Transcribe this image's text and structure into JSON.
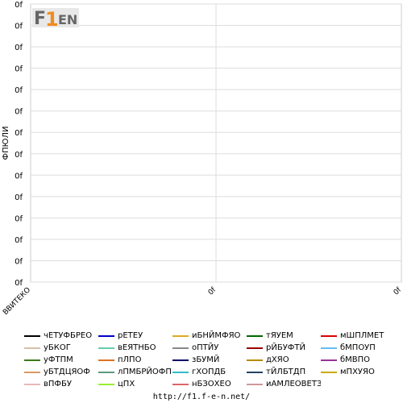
{
  "chart_data": {
    "type": "line",
    "title": "",
    "ylabel": "ФПЮЛИ",
    "xlabel": "",
    "x_ticks": [
      "ВВИТЕКО",
      "0f",
      "0f"
    ],
    "y_ticks": [
      "0f",
      "0f",
      "0f",
      "0f",
      "0f",
      "0f",
      "0f",
      "0f",
      "0f",
      "0f",
      "0f",
      "0f",
      "0f",
      "0f"
    ],
    "grid": true,
    "legend_position": "bottom",
    "series": [
      {
        "name": "чЕТУФБРЕО",
        "color": "#000000",
        "values": []
      },
      {
        "name": "уБКОГ",
        "color": "#d8bfa8",
        "values": []
      },
      {
        "name": "уФТПМ",
        "color": "#3a7a1a",
        "values": []
      },
      {
        "name": "уБТДЦЯОФ",
        "color": "#d89a6a",
        "values": []
      },
      {
        "name": "вПФБУ",
        "color": "#e8b8b8",
        "values": []
      },
      {
        "name": "рЕТЕУ",
        "color": "#0000cc",
        "values": []
      },
      {
        "name": "вЕЯТНБО",
        "color": "#66ccaa",
        "values": []
      },
      {
        "name": "пЛПО",
        "color": "#e07020",
        "values": []
      },
      {
        "name": "лПМБРЙОФП",
        "color": "#5a9a7a",
        "values": []
      },
      {
        "name": "цПХ",
        "color": "#99ee33",
        "values": []
      },
      {
        "name": "иБНЙМФЯО",
        "color": "#ddaa22",
        "values": []
      },
      {
        "name": "оПТЙУ",
        "color": "#888888",
        "values": []
      },
      {
        "name": "зБУМЙ",
        "color": "#000066",
        "values": []
      },
      {
        "name": "гХОПДБ",
        "color": "#33bbcc",
        "values": []
      },
      {
        "name": "нБЗОХЕО",
        "color": "#dd6666",
        "values": []
      },
      {
        "name": "тЯУЕМ",
        "color": "#006600",
        "values": []
      },
      {
        "name": "рЙБУФТЙ",
        "color": "#990000",
        "values": []
      },
      {
        "name": "дХЯО",
        "color": "#bb8800",
        "values": []
      },
      {
        "name": "тЙЛБТДП",
        "color": "#224466",
        "values": []
      },
      {
        "name": "иАМЛЕОВЕТЗ",
        "color": "#cc9999",
        "values": []
      },
      {
        "name": "мШПЛМЕТ",
        "color": "#dd0000",
        "values": []
      },
      {
        "name": "бМПОУП",
        "color": "#66bbee",
        "values": []
      },
      {
        "name": "бМВПО",
        "color": "#993399",
        "values": []
      },
      {
        "name": "мПХУЯО",
        "color": "#ccaa00",
        "values": []
      }
    ]
  },
  "logo": {
    "text": "F1EN",
    "highlight": "1"
  },
  "footer": {
    "url": "http://f1.f-e-n.net/"
  }
}
